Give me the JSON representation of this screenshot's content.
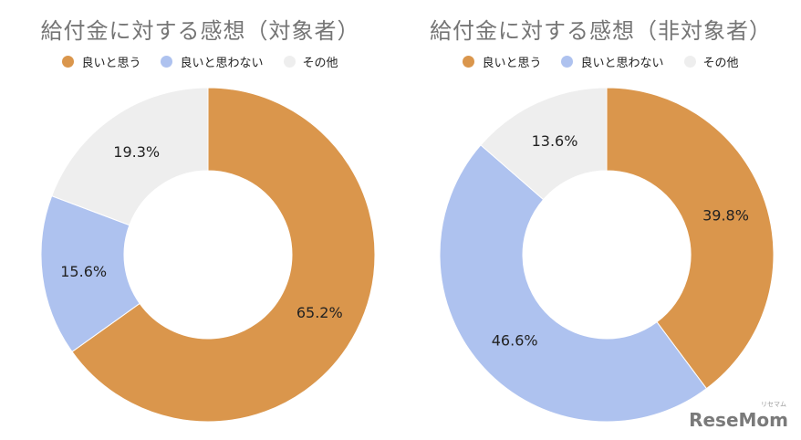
{
  "chart_data": [
    {
      "type": "pie",
      "title": "給付金に対する感想（対象者）",
      "categories": [
        "良いと思う",
        "良いと思わない",
        "その他"
      ],
      "values": [
        65.2,
        15.6,
        19.3
      ],
      "value_labels": [
        "65.2%",
        "15.6%",
        "19.3%"
      ],
      "colors": [
        "#DA964C",
        "#AEC2EF",
        "#EEEEEE"
      ],
      "donut": true,
      "legend": "top"
    },
    {
      "type": "pie",
      "title": "給付金に対する感想（非対象者）",
      "categories": [
        "良いと思う",
        "良いと思わない",
        "その他"
      ],
      "values": [
        39.8,
        46.6,
        13.6
      ],
      "value_labels": [
        "39.8%",
        "46.6%",
        "13.6%"
      ],
      "colors": [
        "#DA964C",
        "#AEC2EF",
        "#EEEEEE"
      ],
      "donut": true,
      "legend": "top"
    }
  ],
  "watermark": {
    "brand": "ReseMom",
    "reading": "リセマム"
  }
}
